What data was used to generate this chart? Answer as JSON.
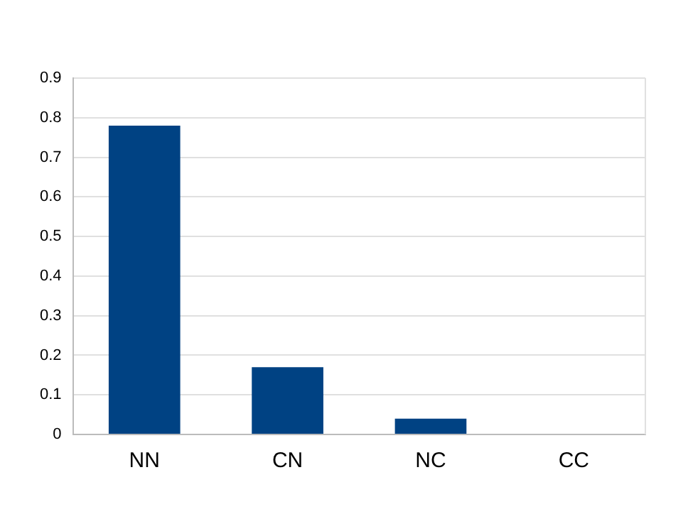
{
  "chart_data": {
    "type": "bar",
    "categories": [
      "NN",
      "CN",
      "NC",
      "CC"
    ],
    "values": [
      0.78,
      0.17,
      0.04,
      0
    ],
    "color": "#004283",
    "ylim": [
      0,
      0.9
    ],
    "yticks": [
      0,
      0.1,
      0.2,
      0.3,
      0.4,
      0.5,
      0.6,
      0.7,
      0.8,
      0.9
    ],
    "grid": "y"
  }
}
